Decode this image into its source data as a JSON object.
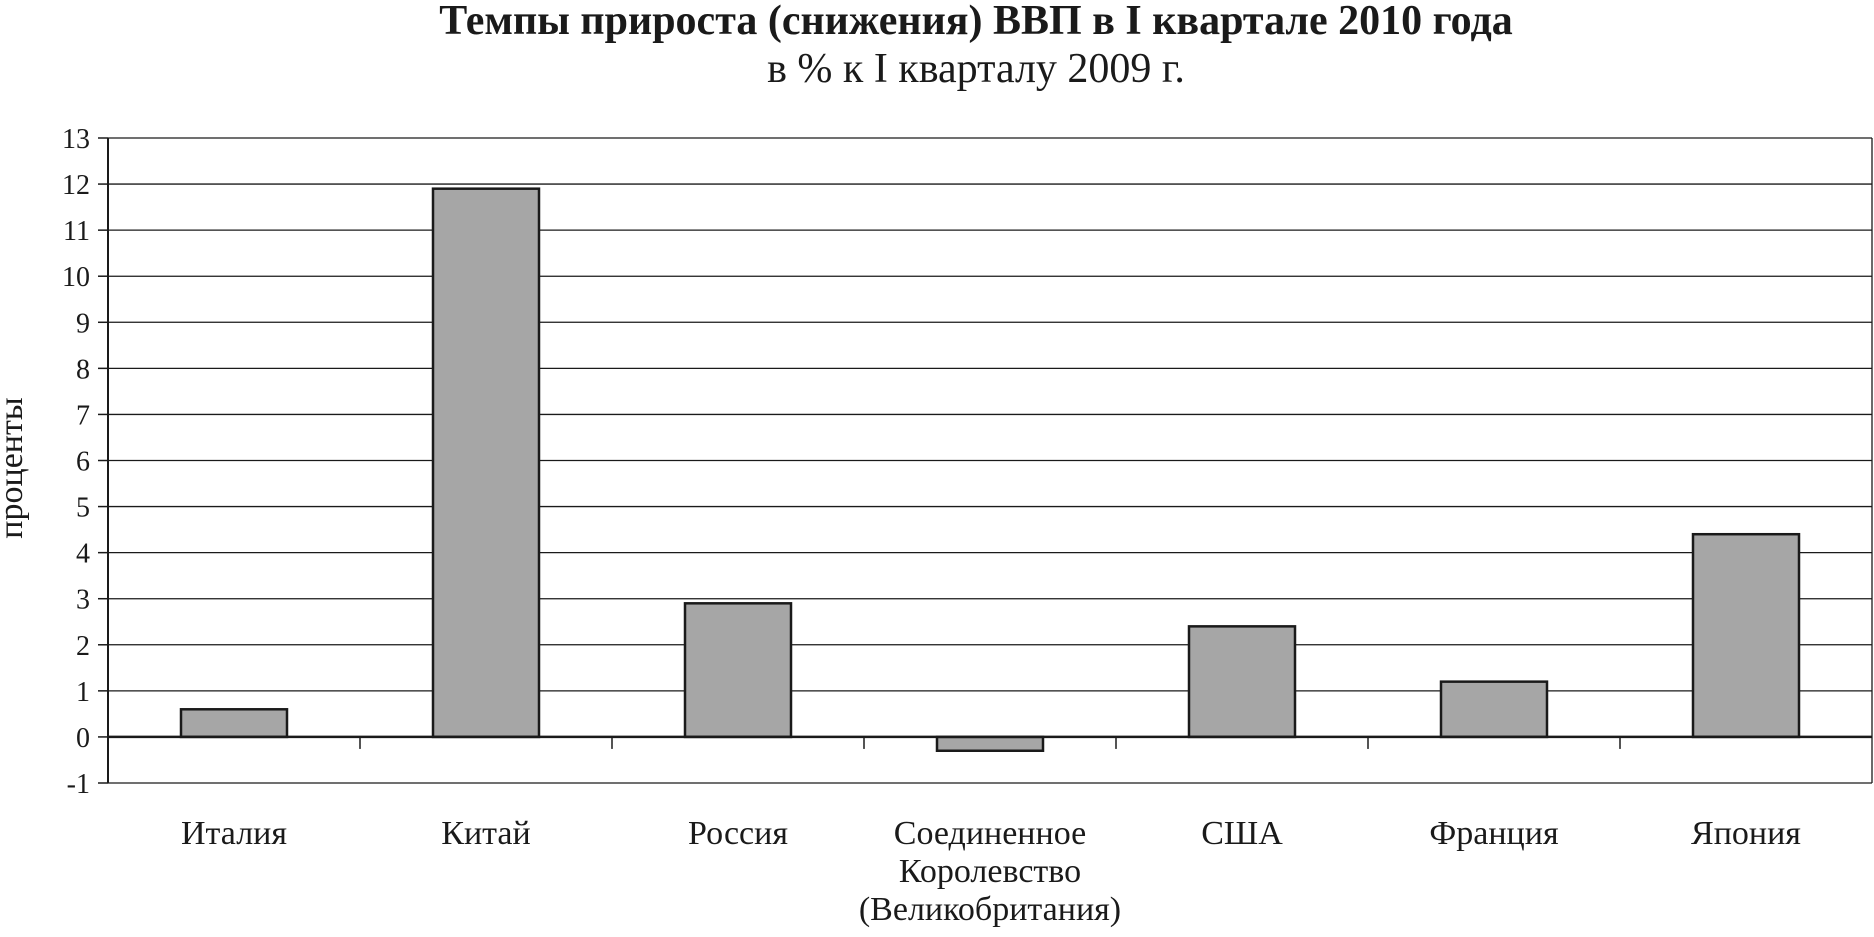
{
  "chart_data": {
    "type": "bar",
    "title": "Темпы прироста (снижения) ВВП в I квартале 2010 года",
    "subtitle": "в % к I кварталу 2009 г.",
    "xlabel": "",
    "ylabel": "проценты",
    "ylim": [
      -1,
      13
    ],
    "yticks": [
      -1,
      0,
      1,
      2,
      3,
      4,
      5,
      6,
      7,
      8,
      9,
      10,
      11,
      12,
      13
    ],
    "grid": true,
    "categories": [
      [
        "Италия"
      ],
      [
        "Китай"
      ],
      [
        "Россия"
      ],
      [
        "Соединенное",
        "Королевство",
        "(Великобритания)"
      ],
      [
        "США"
      ],
      [
        "Франция"
      ],
      [
        "Япония"
      ]
    ],
    "values": [
      0.6,
      11.9,
      2.9,
      -0.3,
      2.4,
      1.2,
      4.4
    ],
    "colors": {
      "bar": "#a6a6a6",
      "bar_stroke": "#1a1a1a",
      "grid": "#1a1a1a",
      "text": "#1a1a1a"
    }
  }
}
